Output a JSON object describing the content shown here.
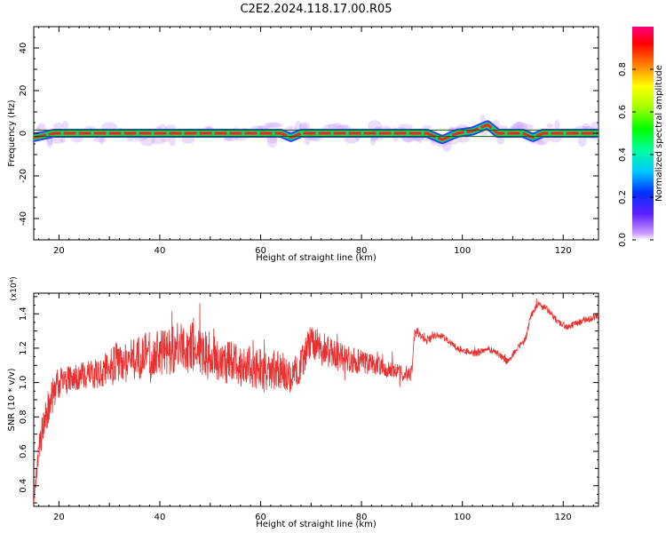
{
  "title": "C2E2.2024.118.17.00.R05",
  "chart_data": [
    {
      "type": "heatmap",
      "xlabel": "Height of straight line (km)",
      "ylabel": "Frequency (Hz)",
      "xlim": [
        15,
        127
      ],
      "ylim": [
        -50,
        50
      ],
      "x_ticks": [
        20,
        40,
        60,
        80,
        100,
        120
      ],
      "y_ticks": [
        40,
        20,
        0,
        -20,
        -40
      ],
      "colorbar": {
        "label": "Normalized spectral amplitude",
        "range": [
          0,
          1
        ],
        "ticks": [
          "0.0",
          "0.2",
          "0.4",
          "0.6",
          "0.8"
        ]
      },
      "ridge": [
        [
          15,
          -2
        ],
        [
          19,
          0
        ],
        [
          64,
          0
        ],
        [
          66,
          -2
        ],
        [
          68,
          0
        ],
        [
          93,
          0
        ],
        [
          96,
          -3
        ],
        [
          99,
          0
        ],
        [
          102,
          1
        ],
        [
          105,
          4
        ],
        [
          107,
          0
        ],
        [
          112,
          0
        ],
        [
          114,
          -2
        ],
        [
          116,
          0
        ],
        [
          127,
          0
        ]
      ],
      "colors": {
        "core": "#ff2020",
        "mid": "#00dd66",
        "outer": "#3040ff",
        "halo": "#c8a0ff",
        "line": "#006400"
      }
    },
    {
      "type": "line",
      "xlabel": "Height of straight line (km)",
      "ylabel": "SNR (10 * v/v)",
      "multiplier": "(x10⁴)",
      "xlim": [
        15,
        127
      ],
      "ylim": [
        0.28,
        1.52
      ],
      "x_ticks": [
        20,
        40,
        60,
        80,
        100,
        120
      ],
      "y_ticks": [
        "0.4",
        "0.6",
        "0.8",
        "1.0",
        "1.2",
        "1.4"
      ],
      "series": [
        {
          "color": "#e83030",
          "x": [
            15.0,
            15.5,
            16.0,
            17.0,
            18.0,
            19.0,
            20.0,
            22.0,
            25.0,
            28.0,
            30.0,
            33.0,
            36.0,
            40.0,
            43.0,
            47.0,
            50.0,
            53.0,
            57.0,
            60.0,
            63.0,
            66.0,
            68.0,
            70.0,
            72.0,
            75.0,
            78.0,
            80.0,
            83.0,
            86.0,
            88.0,
            90.0,
            90.5,
            91.0,
            93.0,
            95.0,
            97.0,
            99.0,
            101.0,
            103.0,
            105.0,
            107.0,
            109.0,
            111.0,
            112.5,
            113.5,
            115.0,
            117.0,
            119.0,
            121.0,
            123.0,
            125.0,
            127.0
          ],
          "y": [
            0.3,
            0.45,
            0.6,
            0.78,
            0.85,
            0.95,
            1.0,
            1.02,
            1.04,
            1.05,
            1.1,
            1.12,
            1.15,
            1.17,
            1.2,
            1.2,
            1.15,
            1.12,
            1.1,
            1.08,
            1.07,
            1.05,
            1.1,
            1.25,
            1.2,
            1.15,
            1.13,
            1.12,
            1.1,
            1.07,
            1.05,
            1.05,
            1.28,
            1.3,
            1.25,
            1.28,
            1.25,
            1.2,
            1.18,
            1.17,
            1.2,
            1.17,
            1.12,
            1.2,
            1.25,
            1.38,
            1.46,
            1.42,
            1.35,
            1.32,
            1.35,
            1.37,
            1.39
          ],
          "noise": [
            0.02,
            0.05,
            0.08,
            0.1,
            0.12,
            0.1,
            0.09,
            0.08,
            0.08,
            0.09,
            0.12,
            0.13,
            0.13,
            0.14,
            0.15,
            0.15,
            0.14,
            0.13,
            0.13,
            0.12,
            0.12,
            0.12,
            0.1,
            0.1,
            0.1,
            0.09,
            0.08,
            0.07,
            0.06,
            0.05,
            0.05,
            0.05,
            0.03,
            0.03,
            0.03,
            0.02,
            0.02,
            0.02,
            0.02,
            0.02,
            0.02,
            0.02,
            0.02,
            0.02,
            0.02,
            0.02,
            0.02,
            0.02,
            0.02,
            0.02,
            0.02,
            0.02,
            0.02
          ]
        }
      ]
    }
  ]
}
